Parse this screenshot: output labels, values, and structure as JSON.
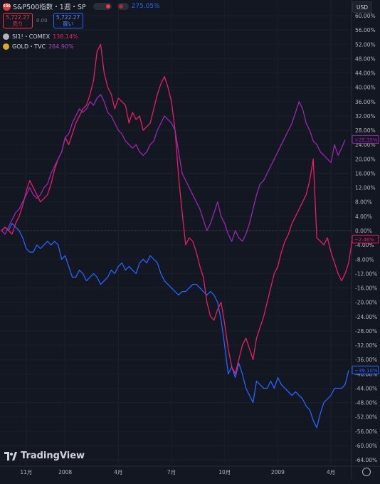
{
  "header": {
    "symbol_badge": "500",
    "symbol_title": "S&P500指数・1週・SP",
    "performance": "275.05%",
    "sell": {
      "price": "5,722.27",
      "label": "売り"
    },
    "buy": {
      "price": "5,722.27",
      "label": "買い"
    },
    "spread": "0.00"
  },
  "compare": [
    {
      "name": "SI1!・COMEX",
      "value": "138.14%",
      "color": "#e91e63"
    },
    {
      "name": "GOLD・TVC",
      "value": "264.90%",
      "color": "#ab47bc"
    }
  ],
  "currency": "USD",
  "logo": "TradingView",
  "colors": {
    "spx": "#2962ff",
    "silver": "#e91e63",
    "gold": "#9c27b0",
    "background": "#131722"
  },
  "chart_data": {
    "type": "line",
    "y_ticks": [
      "60.00%",
      "56.00%",
      "52.00%",
      "48.00%",
      "44.00%",
      "40.00%",
      "36.00%",
      "32.00%",
      "28.00%",
      "24.00%",
      "20.00%",
      "16.00%",
      "12.00%",
      "8.00%",
      "4.00%",
      "0.00%",
      "-4.00%",
      "-8.00%",
      "-12.00%",
      "-16.00%",
      "-20.00%",
      "-24.00%",
      "-28.00%",
      "-32.00%",
      "-36.00%",
      "-40.00%",
      "-44.00%",
      "-48.00%",
      "-52.00%",
      "-56.00%",
      "-60.00%",
      "-64.00%"
    ],
    "ylim": [
      -66,
      62
    ],
    "x_ticks": [
      {
        "label": "11月",
        "i": 7
      },
      {
        "label": "2008",
        "i": 18
      },
      {
        "label": "4月",
        "i": 33
      },
      {
        "label": "7月",
        "i": 48
      },
      {
        "label": "10月",
        "i": 63
      },
      {
        "label": "2009",
        "i": 78
      },
      {
        "label": "4月",
        "i": 93
      }
    ],
    "last_labels": {
      "spx": "−39.10%",
      "silver": "−2.46%",
      "gold": "+25.35%"
    },
    "series": [
      {
        "key": "spx",
        "values": [
          0,
          1,
          0,
          2,
          1,
          0,
          -2,
          -5,
          -6,
          -6,
          -4,
          -5,
          -4,
          -3,
          -4,
          -3,
          -4,
          -8,
          -7,
          -10,
          -13,
          -13,
          -11,
          -12,
          -14,
          -13,
          -12,
          -13,
          -15,
          -14,
          -13,
          -11,
          -12,
          -10,
          -9,
          -11,
          -10,
          -11,
          -12,
          -9,
          -8,
          -9,
          -7,
          -8,
          -9,
          -12,
          -14,
          -15,
          -16,
          -17,
          -18,
          -17,
          -17,
          -16,
          -15,
          -15,
          -16,
          -17,
          -18,
          -17,
          -18,
          -20,
          -25,
          -32,
          -40,
          -38,
          -41,
          -37,
          -40,
          -44,
          -46,
          -48,
          -42,
          -43,
          -44,
          -44,
          -42,
          -44,
          -41,
          -43,
          -44,
          -45,
          -46,
          -45,
          -46,
          -47,
          -49,
          -50,
          -53,
          -55,
          -51,
          -48,
          -47,
          -46,
          -44,
          -44,
          -44,
          -43,
          -39
        ]
      },
      {
        "key": "silver",
        "values": [
          0,
          1,
          0,
          -1,
          2,
          4,
          7,
          11,
          14,
          12,
          10,
          8,
          9,
          10,
          13,
          17,
          20,
          22,
          26,
          24,
          27,
          30,
          32,
          34,
          35,
          38,
          42,
          50,
          52,
          44,
          40,
          38,
          34,
          37,
          36,
          35,
          30,
          33,
          31,
          32,
          28,
          29,
          30,
          34,
          38,
          41,
          43,
          40,
          36,
          28,
          15,
          5,
          -4,
          -2,
          -3,
          -6,
          -10,
          -13,
          -20,
          -24,
          -25,
          -22,
          -20,
          -26,
          -33,
          -38,
          -40,
          -36,
          -32,
          -30,
          -33,
          -36,
          -30,
          -27,
          -24,
          -20,
          -16,
          -12,
          -10,
          -6,
          -3,
          -1,
          2,
          4,
          6,
          8,
          10,
          14,
          20,
          -2,
          -3,
          -4,
          -2,
          -6,
          -9,
          -12,
          -14,
          -12,
          -9,
          -2.46
        ]
      },
      {
        "key": "gold",
        "values": [
          0,
          -1,
          1,
          3,
          5,
          6,
          8,
          10,
          12,
          10,
          9,
          10,
          12,
          13,
          16,
          18,
          20,
          22,
          26,
          27,
          30,
          32,
          34,
          33,
          34,
          36,
          35,
          37,
          38,
          36,
          33,
          32,
          30,
          28,
          27,
          25,
          24,
          23,
          24,
          22,
          21,
          22,
          24,
          25,
          28,
          30,
          32,
          31,
          30,
          28,
          22,
          16,
          14,
          12,
          10,
          8,
          6,
          3,
          0,
          2,
          5,
          8,
          4,
          2,
          -1,
          -3,
          0,
          -2,
          -3,
          -1,
          2,
          6,
          10,
          13,
          14,
          16,
          18,
          20,
          22,
          24,
          26,
          28,
          30,
          33,
          36,
          34,
          30,
          28,
          25,
          24,
          22,
          21,
          20,
          19,
          24,
          21,
          23,
          25.35
        ]
      }
    ]
  }
}
